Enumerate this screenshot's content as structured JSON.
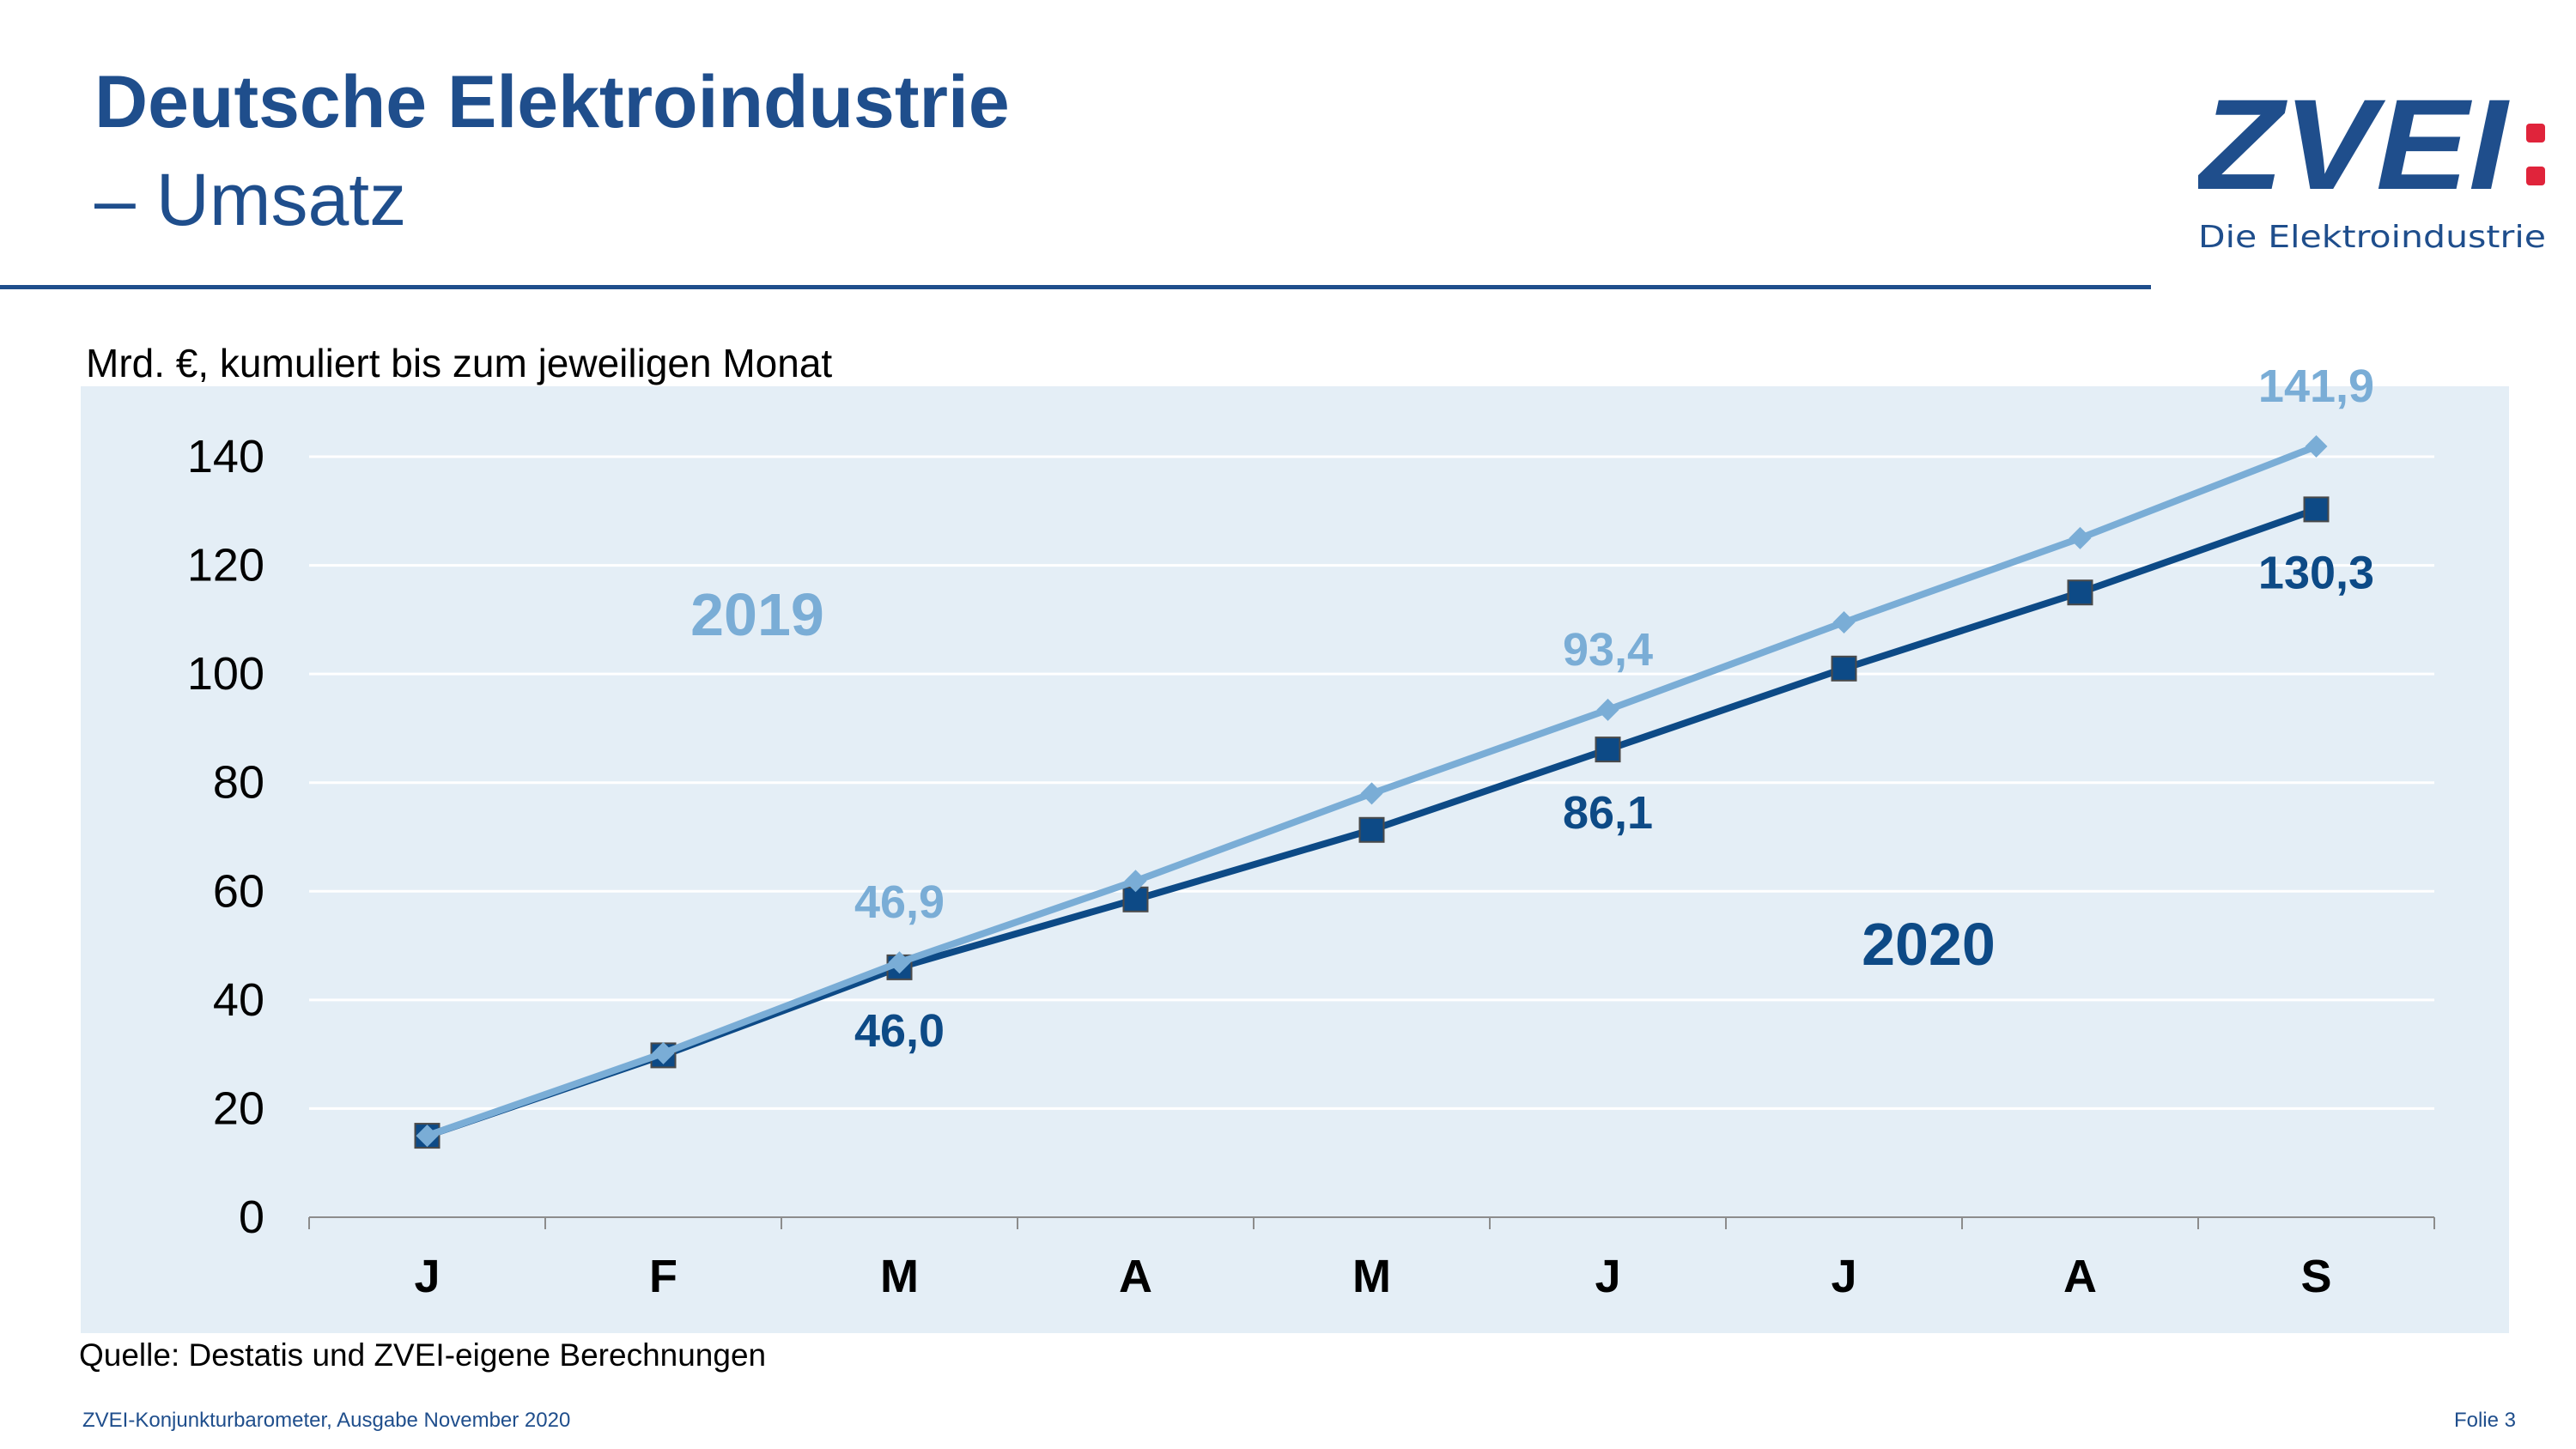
{
  "header": {
    "title": "Deutsche Elektroindustrie",
    "subtitle": "– Umsatz"
  },
  "logo": {
    "text": "ZVEI",
    "tagline": "Die Elektroindustrie"
  },
  "chart_subtitle": "Mrd. €, kumuliert bis zum jeweiligen Monat",
  "source": "Quelle: Destatis und ZVEI-eigene Berechnungen",
  "footer": {
    "left": "ZVEI-Konjunkturbarometer, Ausgabe November 2020",
    "right": "Folie 3"
  },
  "colors": {
    "brand": "#1f4e8c",
    "series_2019": "#7aadd6",
    "series_2020": "#0d4a86",
    "plot_background": "#e4eef6",
    "logo_dot": "#e0243b"
  },
  "chart_data": {
    "type": "line",
    "categories": [
      "J",
      "F",
      "M",
      "A",
      "M",
      "J",
      "J",
      "A",
      "S"
    ],
    "ylim": [
      0,
      140
    ],
    "yticks": [
      0,
      20,
      40,
      60,
      80,
      100,
      120,
      140
    ],
    "grid": true,
    "series": [
      {
        "name": "2019",
        "marker": "diamond",
        "values": [
          15.0,
          30.2,
          46.9,
          61.9,
          78.0,
          93.4,
          109.5,
          125.0,
          141.9
        ],
        "labels": [
          {
            "index": 2,
            "text": "46,9"
          },
          {
            "index": 5,
            "text": "93,4"
          },
          {
            "index": 8,
            "text": "141,9"
          }
        ]
      },
      {
        "name": "2020",
        "marker": "square",
        "values": [
          15.0,
          29.8,
          46.0,
          58.5,
          71.3,
          86.1,
          101.0,
          115.0,
          130.3
        ],
        "labels": [
          {
            "index": 2,
            "text": "46,0"
          },
          {
            "index": 5,
            "text": "86,1"
          },
          {
            "index": 8,
            "text": "130,3"
          }
        ]
      }
    ]
  }
}
